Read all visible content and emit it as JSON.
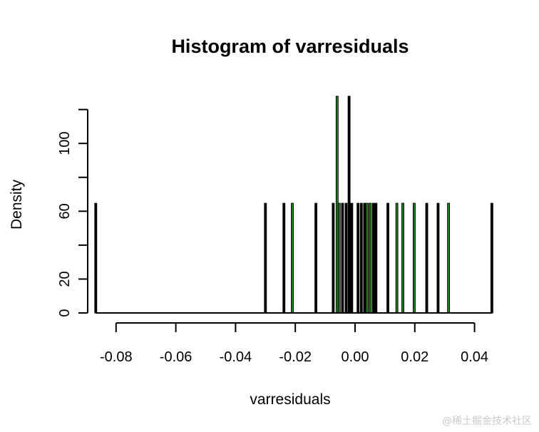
{
  "chart_data": {
    "type": "bar",
    "title": "Histogram of varresiduals",
    "xlabel": "varresiduals",
    "ylabel": "Density",
    "xlim": [
      -0.0895,
      0.0475
    ],
    "ylim": [
      0,
      127
    ],
    "x_ticks": [
      -0.08,
      -0.06,
      -0.04,
      -0.02,
      0.0,
      0.02,
      0.04
    ],
    "x_tick_labels": [
      "-0.08",
      "-0.06",
      "-0.04",
      "-0.02",
      "0.00",
      "0.02",
      "0.04"
    ],
    "y_ticks": [
      0,
      20,
      40,
      60,
      80,
      100,
      120
    ],
    "y_tick_labels": [
      "0",
      "20",
      "",
      "60",
      "",
      "100",
      ""
    ],
    "bar_width": 0.00068,
    "series": [
      {
        "name": "black",
        "color": "#000000",
        "bars": [
          {
            "x": -0.0868,
            "y": 64.7
          },
          {
            "x": -0.03,
            "y": 64.7
          },
          {
            "x": -0.0238,
            "y": 64.7
          },
          {
            "x": -0.0131,
            "y": 64.7
          },
          {
            "x": -0.0073,
            "y": 64.7
          },
          {
            "x": -0.0042,
            "y": 64.7
          },
          {
            "x": -0.003,
            "y": 64.7
          },
          {
            "x": -0.002,
            "y": 129.4
          },
          {
            "x": -0.0011,
            "y": 64.7
          },
          {
            "x": 0.001,
            "y": 64.7
          },
          {
            "x": 0.0021,
            "y": 64.7
          },
          {
            "x": 0.0032,
            "y": 64.7
          },
          {
            "x": 0.0061,
            "y": 64.7
          },
          {
            "x": 0.007,
            "y": 64.7
          },
          {
            "x": 0.011,
            "y": 64.7
          },
          {
            "x": 0.024,
            "y": 64.7
          },
          {
            "x": 0.0278,
            "y": 64.7
          },
          {
            "x": 0.0458,
            "y": 64.7
          }
        ]
      },
      {
        "name": "green",
        "color": "#1f8b1f",
        "bars": [
          {
            "x": -0.021,
            "y": 64.7
          },
          {
            "x": -0.006,
            "y": 129.4
          },
          {
            "x": -0.0053,
            "y": 64.7
          },
          {
            "x": 0.004,
            "y": 64.7
          },
          {
            "x": 0.005,
            "y": 64.7
          },
          {
            "x": 0.014,
            "y": 64.7
          },
          {
            "x": 0.016,
            "y": 64.7
          },
          {
            "x": 0.0198,
            "y": 64.7
          },
          {
            "x": 0.0313,
            "y": 64.7
          }
        ]
      }
    ],
    "grid": false,
    "legend": "none"
  },
  "watermark": "@稀土掘金技术社区"
}
